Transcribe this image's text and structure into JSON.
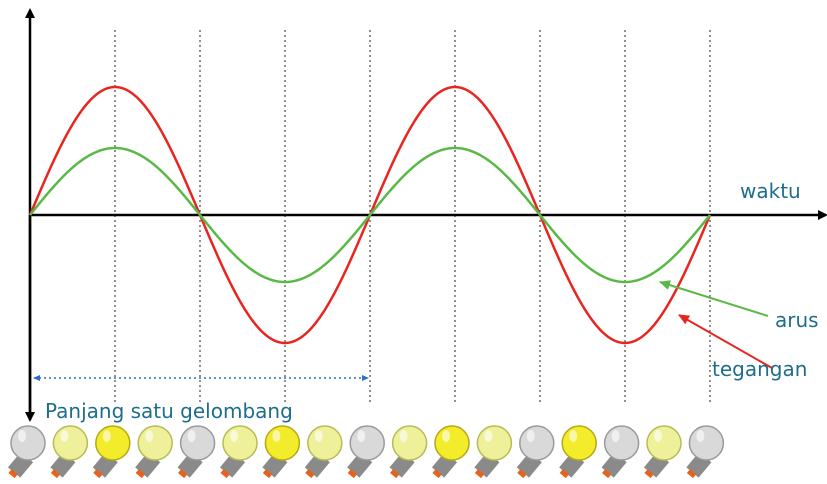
{
  "labels": {
    "time_axis": "waktu",
    "current": "arus",
    "voltage": "tegangan",
    "wavelength": "Panjang satu gelombang"
  }
}
